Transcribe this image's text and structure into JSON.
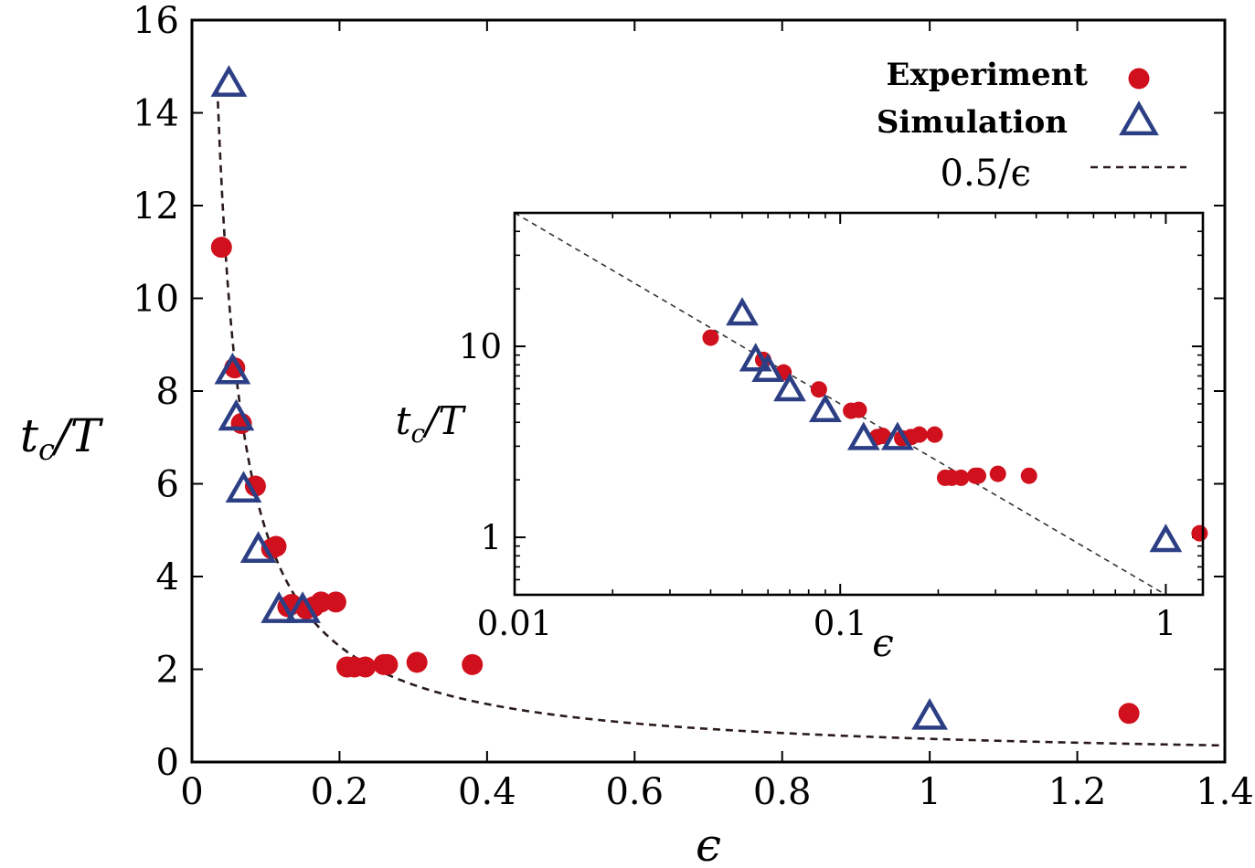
{
  "colors": {
    "experiment": "#d0101c",
    "simulation": "#2c3f85",
    "fit": "#2a1a1a"
  },
  "chart_data": [
    {
      "type": "scatter",
      "xlabel": "ϵ",
      "ylabel": "t_c/T",
      "xlim": [
        0,
        1.4
      ],
      "ylim": [
        0,
        16
      ],
      "x_ticks": [
        "0",
        "0.2",
        "0.4",
        "0.6",
        "0.8",
        "1",
        "1.2",
        "1.4"
      ],
      "y_ticks": [
        "0",
        "2",
        "4",
        "6",
        "8",
        "10",
        "12",
        "14",
        "16"
      ],
      "legend": {
        "placement": "top-right",
        "experiment": "Experiment",
        "simulation": "Simulation",
        "fit": "0.5/ϵ"
      },
      "series": [
        {
          "name": "Experiment",
          "marker": "circle",
          "x": [
            0.04,
            0.058,
            0.067,
            0.086,
            0.108,
            0.114,
            0.13,
            0.135,
            0.155,
            0.165,
            0.175,
            0.195,
            0.21,
            0.22,
            0.235,
            0.26,
            0.265,
            0.305,
            0.38,
            1.27
          ],
          "y": [
            11.1,
            8.5,
            7.3,
            5.95,
            4.6,
            4.65,
            3.35,
            3.4,
            3.3,
            3.35,
            3.45,
            3.45,
            2.05,
            2.05,
            2.05,
            2.1,
            2.1,
            2.15,
            2.1,
            1.05
          ]
        },
        {
          "name": "Simulation",
          "marker": "triangle",
          "x": [
            0.05,
            0.055,
            0.06,
            0.07,
            0.09,
            0.118,
            0.15,
            1.0
          ],
          "y": [
            14.6,
            8.4,
            7.4,
            5.85,
            4.55,
            3.25,
            3.25,
            0.95
          ]
        },
        {
          "name": "0.5/ϵ",
          "type": "line",
          "style": "dashed",
          "function": "0.5/x",
          "x_range": [
            0.031,
            1.4
          ]
        }
      ]
    },
    {
      "type": "scatter",
      "inset": true,
      "xlabel": "ϵ",
      "ylabel": "t_c/T",
      "x_scale": "log",
      "y_scale": "log",
      "xlim": [
        0.01,
        1.3
      ],
      "ylim": [
        0.5,
        50
      ],
      "x_ticks": [
        "0.01",
        "0.1",
        "1"
      ],
      "y_ticks": [
        "1",
        "10"
      ],
      "series": [
        {
          "name": "Experiment",
          "marker": "circle",
          "x": [
            0.04,
            0.058,
            0.067,
            0.086,
            0.108,
            0.114,
            0.13,
            0.135,
            0.155,
            0.165,
            0.175,
            0.195,
            0.21,
            0.22,
            0.235,
            0.26,
            0.265,
            0.305,
            0.38,
            1.27
          ],
          "y": [
            11.1,
            8.5,
            7.3,
            5.95,
            4.6,
            4.65,
            3.35,
            3.4,
            3.3,
            3.35,
            3.45,
            3.45,
            2.05,
            2.05,
            2.05,
            2.1,
            2.1,
            2.15,
            2.1,
            1.05
          ]
        },
        {
          "name": "Simulation",
          "marker": "triangle",
          "x": [
            0.05,
            0.055,
            0.06,
            0.07,
            0.09,
            0.118,
            0.15,
            1.0
          ],
          "y": [
            14.6,
            8.4,
            7.4,
            5.85,
            4.55,
            3.25,
            3.25,
            0.95
          ]
        },
        {
          "name": "0.5/ϵ",
          "type": "line",
          "style": "dashed",
          "function": "0.5/x",
          "x_range": [
            0.01,
            1.3
          ]
        }
      ]
    }
  ]
}
